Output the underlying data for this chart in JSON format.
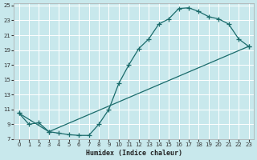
{
  "xlabel": "Humidex (Indice chaleur)",
  "bg_color": "#c8e8ec",
  "grid_color": "#b0d8dc",
  "line_color": "#1a6b6b",
  "xlim": [
    0,
    23
  ],
  "ylim": [
    7,
    25
  ],
  "xticks": [
    0,
    1,
    2,
    3,
    4,
    5,
    6,
    7,
    8,
    9,
    10,
    11,
    12,
    13,
    14,
    15,
    16,
    17,
    18,
    19,
    20,
    21,
    22,
    23
  ],
  "yticks": [
    7,
    9,
    11,
    13,
    15,
    17,
    19,
    21,
    23,
    25
  ],
  "curve1_x": [
    0,
    1,
    2,
    3,
    4,
    5,
    6,
    7,
    8,
    9,
    10,
    11,
    12,
    13,
    14,
    15,
    16,
    17,
    18,
    19,
    20,
    21,
    22,
    23
  ],
  "curve1_y": [
    10.5,
    9.0,
    9.2,
    8.0,
    7.8,
    7.6,
    7.5,
    7.5,
    9.0,
    11.0,
    14.5,
    17.0,
    19.2,
    20.5,
    22.5,
    23.2,
    24.6,
    24.7,
    24.2,
    23.5,
    23.2,
    22.5,
    20.5,
    19.5
  ],
  "curve2_x": [
    0,
    3,
    23
  ],
  "curve2_y": [
    10.5,
    8.0,
    19.5
  ]
}
